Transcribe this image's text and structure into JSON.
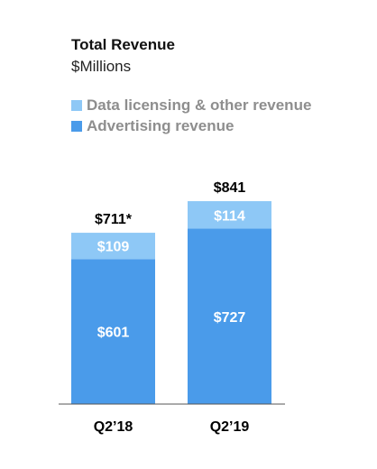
{
  "chart_data": {
    "type": "bar",
    "stacked": true,
    "title": "Total Revenue",
    "subtitle": "$Millions",
    "categories": [
      "Q2’18",
      "Q2’19"
    ],
    "series": [
      {
        "name": "Advertising revenue",
        "values": [
          601,
          727
        ],
        "labels": [
          "$601",
          "$727"
        ],
        "color": "#4a9bea"
      },
      {
        "name": "Data licensing & other revenue",
        "values": [
          109,
          114
        ],
        "labels": [
          "$109",
          "$114"
        ],
        "color": "#8ec8f6"
      }
    ],
    "totals": [
      711,
      841
    ],
    "total_labels": [
      "$711*",
      "$841"
    ],
    "legend_order": [
      "Data licensing & other revenue",
      "Advertising revenue"
    ],
    "legend_position": "top-left",
    "grid": false,
    "ylim": [
      0,
      860
    ]
  }
}
